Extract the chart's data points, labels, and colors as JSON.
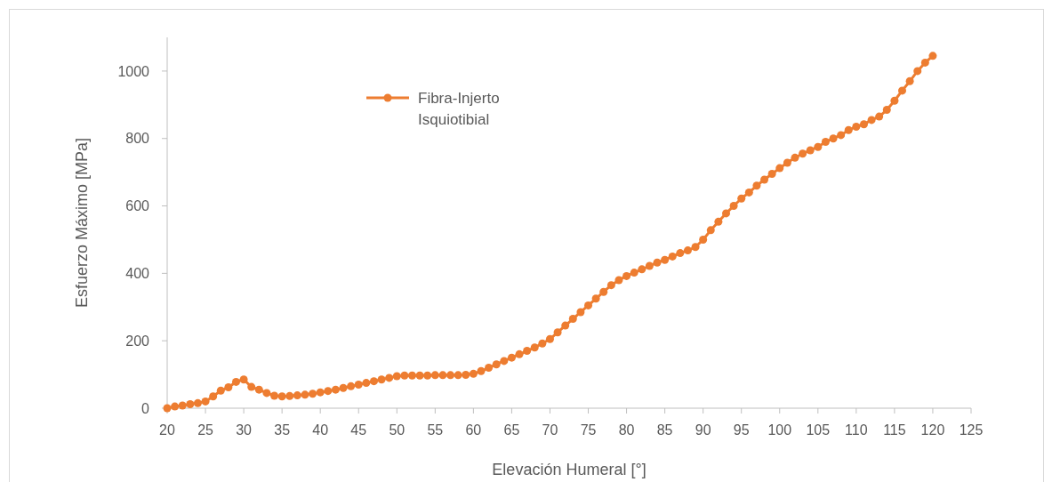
{
  "chart_data": {
    "type": "line",
    "xlabel": "Elevación Humeral [°]",
    "ylabel": "Esfuerzo Máximo [MPa]",
    "x": [
      20,
      21,
      22,
      23,
      24,
      25,
      26,
      27,
      28,
      29,
      30,
      31,
      32,
      33,
      34,
      35,
      36,
      37,
      38,
      39,
      40,
      41,
      42,
      43,
      44,
      45,
      46,
      47,
      48,
      49,
      50,
      51,
      52,
      53,
      54,
      55,
      56,
      57,
      58,
      59,
      60,
      61,
      62,
      63,
      64,
      65,
      66,
      67,
      68,
      69,
      70,
      71,
      72,
      73,
      74,
      75,
      76,
      77,
      78,
      79,
      80,
      81,
      82,
      83,
      84,
      85,
      86,
      87,
      88,
      89,
      90,
      91,
      92,
      93,
      94,
      95,
      96,
      97,
      98,
      99,
      100,
      101,
      102,
      103,
      104,
      105,
      106,
      107,
      108,
      109,
      110,
      111,
      112,
      113,
      114,
      115,
      116,
      117,
      118,
      119,
      120
    ],
    "series": [
      {
        "name": "Fibra-Injerto Isquiotibial",
        "color": "#ed7d31",
        "values": [
          0,
          5,
          8,
          12,
          15,
          20,
          35,
          52,
          62,
          78,
          85,
          63,
          55,
          45,
          37,
          35,
          36,
          38,
          40,
          43,
          47,
          51,
          55,
          60,
          65,
          70,
          75,
          80,
          85,
          90,
          95,
          97,
          97,
          97,
          97,
          98,
          98,
          98,
          98,
          99,
          102,
          110,
          120,
          130,
          140,
          150,
          160,
          170,
          180,
          192,
          205,
          225,
          245,
          265,
          285,
          305,
          325,
          345,
          365,
          380,
          392,
          402,
          412,
          422,
          432,
          440,
          450,
          460,
          468,
          478,
          500,
          528,
          553,
          578,
          600,
          622,
          640,
          660,
          678,
          695,
          712,
          728,
          743,
          755,
          765,
          775,
          790,
          800,
          810,
          825,
          835,
          842,
          855,
          865,
          885,
          912,
          942,
          970,
          1000,
          1025,
          1045
        ]
      }
    ],
    "xlim": [
      20,
      125
    ],
    "xticks": [
      20,
      25,
      30,
      35,
      40,
      45,
      50,
      55,
      60,
      65,
      70,
      75,
      80,
      85,
      90,
      95,
      100,
      105,
      110,
      115,
      120,
      125
    ],
    "ylim": [
      0,
      1100
    ],
    "yticks": [
      0,
      200,
      400,
      600,
      800,
      1000
    ],
    "grid": false,
    "legend": "top",
    "marker": "circle",
    "line_style": "solid"
  }
}
